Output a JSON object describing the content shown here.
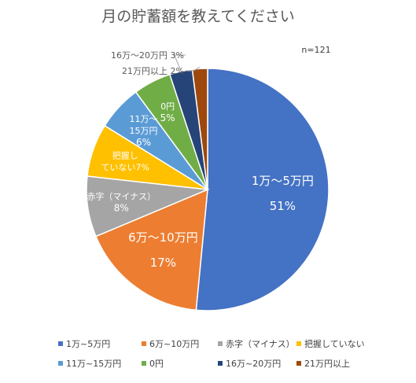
{
  "chart_data": {
    "type": "pie",
    "title": "月の貯蓄額を教えてください",
    "annotation": "n=121",
    "unit": "%",
    "legend_position": "bottom",
    "slices": [
      {
        "name": "1万~5万円",
        "label_lines": [
          "1万～5万円"
        ],
        "value": 51,
        "value_label": "51%",
        "color": "#4472C4"
      },
      {
        "name": "6万~10万円",
        "label_lines": [
          "6万～10万円"
        ],
        "value": 17,
        "value_label": "17%",
        "color": "#ED7D31"
      },
      {
        "name": "赤字（マイナス）",
        "label_lines": [
          "赤字（マイナス）"
        ],
        "value": 8,
        "value_label": "8%",
        "color": "#A5A5A5"
      },
      {
        "name": "把握していない",
        "label_lines": [
          "把握し",
          "ていない7%"
        ],
        "value": 7,
        "value_label": "",
        "color": "#FFC000"
      },
      {
        "name": "11万~15万円",
        "label_lines": [
          "11万～",
          "15万円"
        ],
        "value": 6,
        "value_label": "6%",
        "color": "#5B9BD5"
      },
      {
        "name": "0円",
        "label_lines": [
          "0円"
        ],
        "value": 5,
        "value_label": "5%",
        "color": "#70AD47"
      },
      {
        "name": "16万~20万円",
        "label_lines": [],
        "external_label": "16万～20万円 3%",
        "value": 3,
        "value_label": "",
        "color": "#264478"
      },
      {
        "name": "21万円以上",
        "label_lines": [],
        "external_label": "21万円以上 2%",
        "value": 2,
        "value_label": "",
        "color": "#9E480E"
      }
    ]
  }
}
